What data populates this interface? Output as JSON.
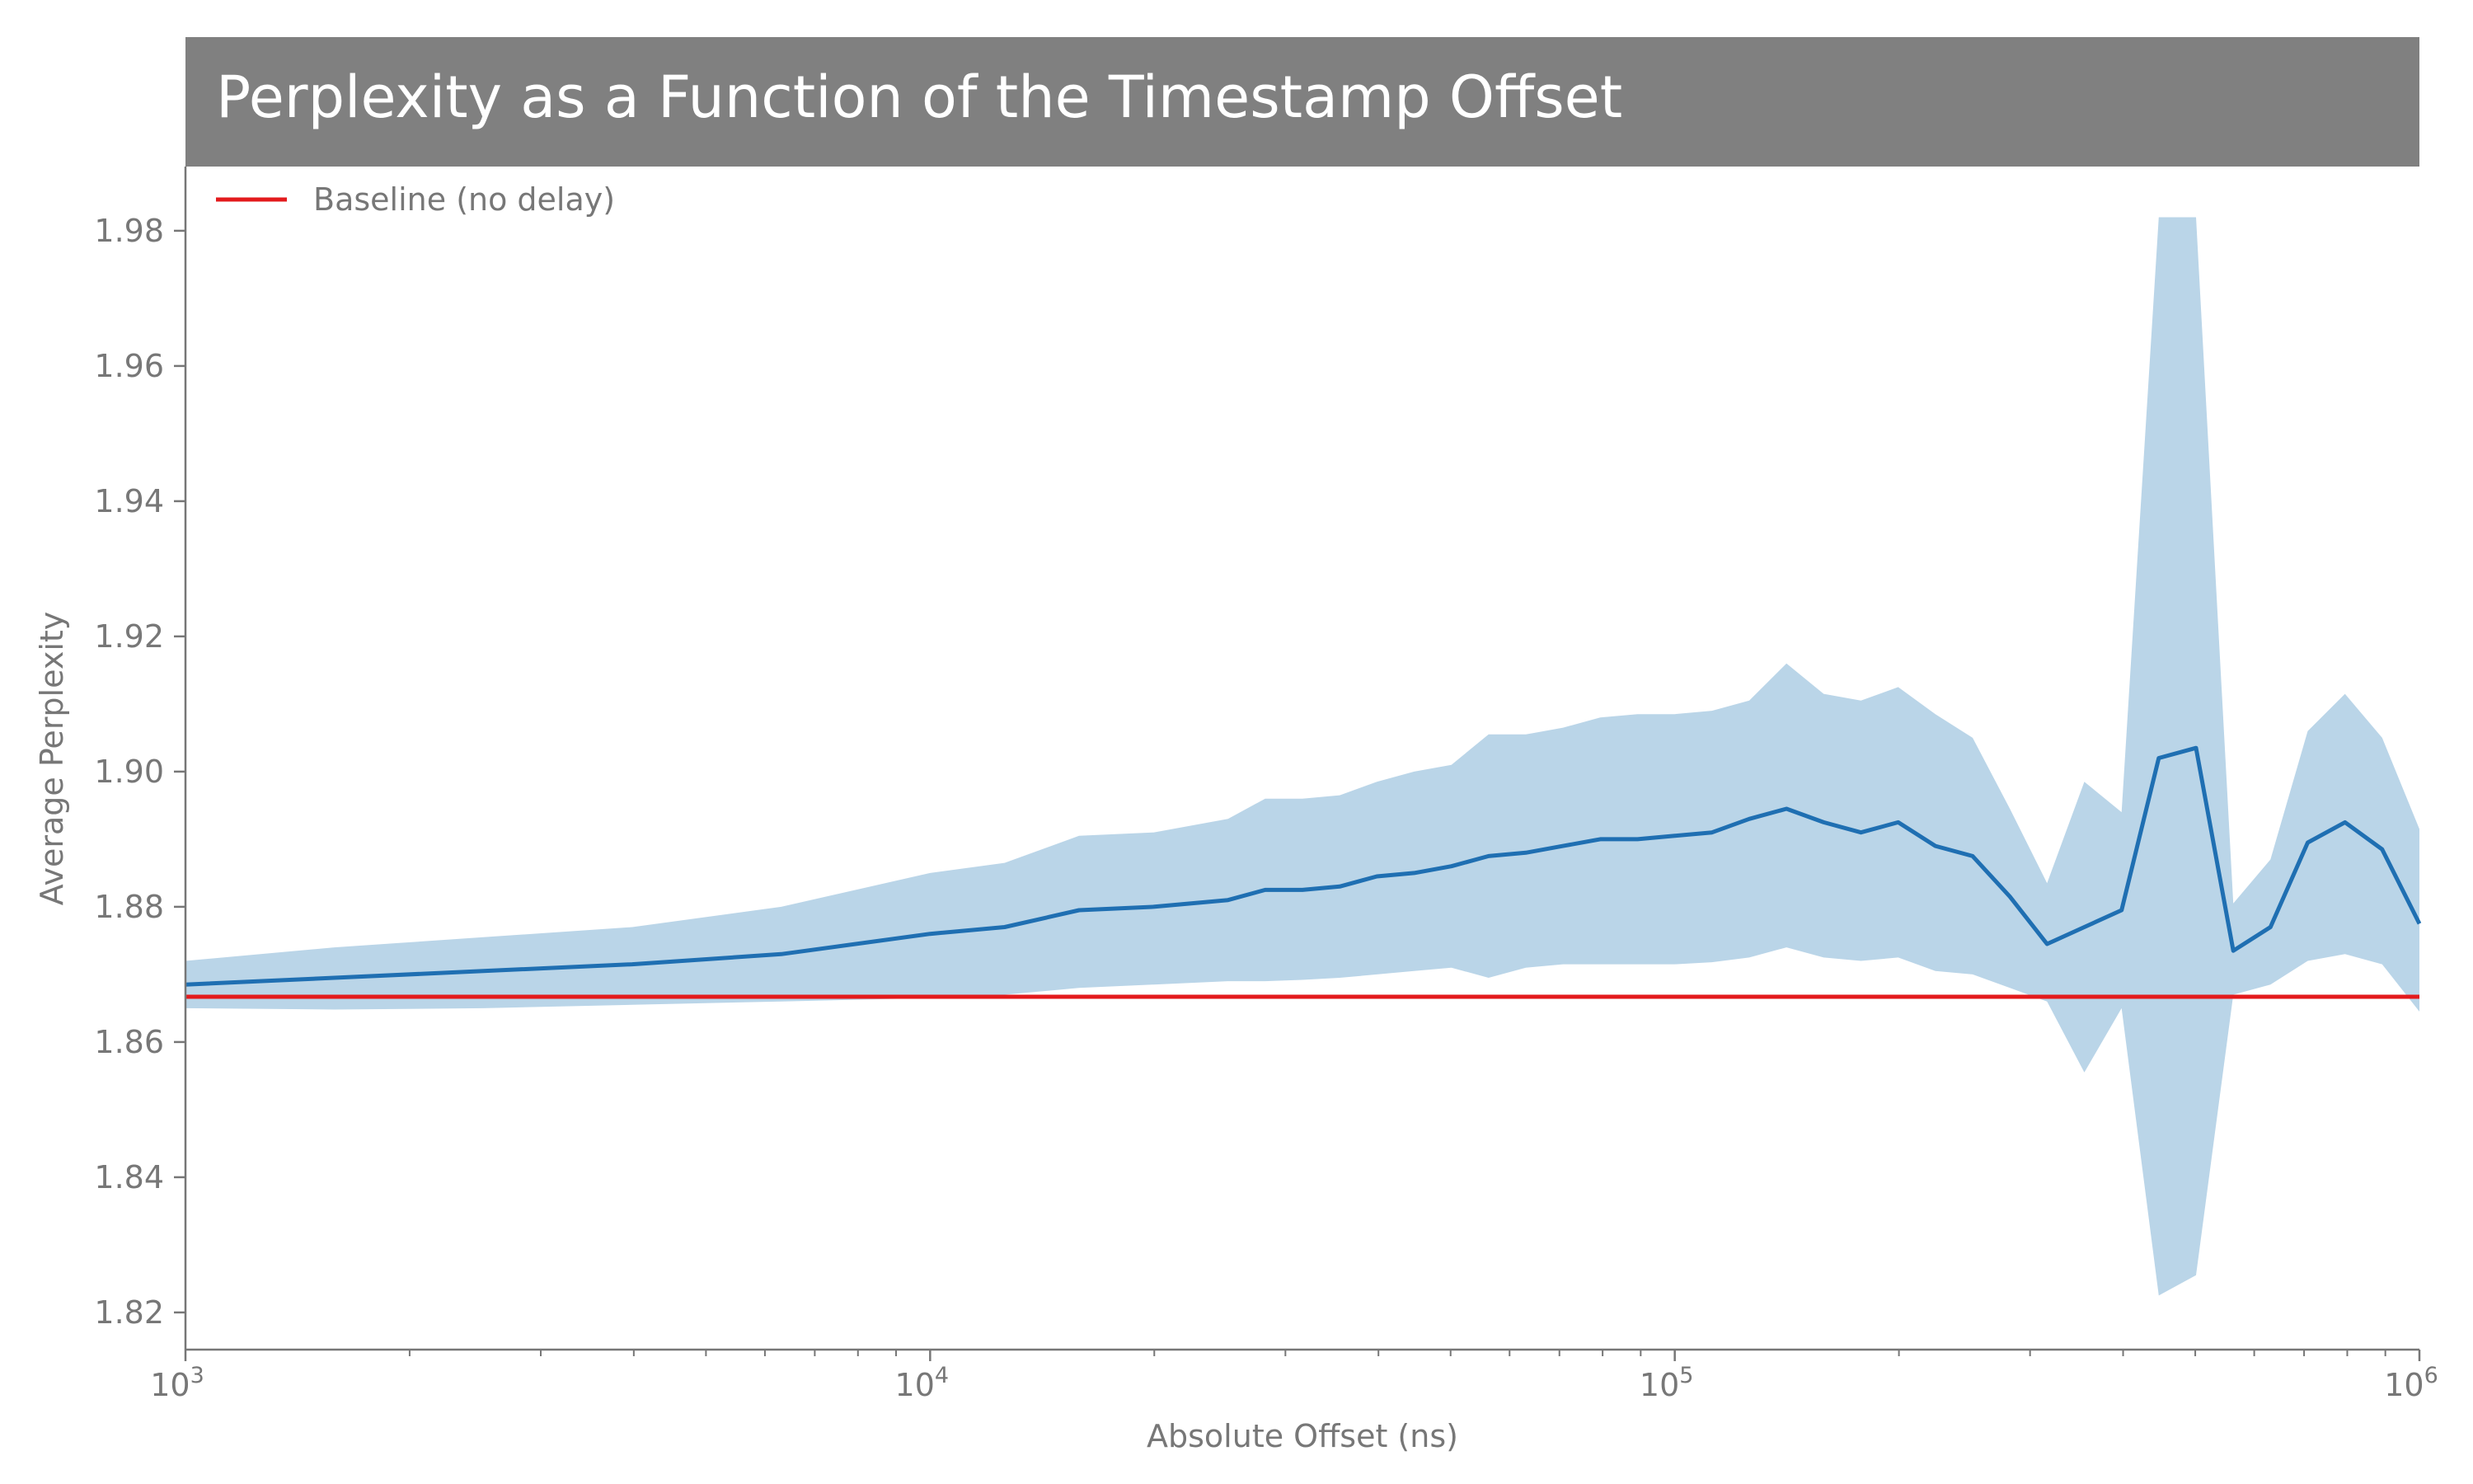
{
  "chart_data": {
    "type": "line",
    "title": "Perplexity as a Function of the Timestamp Offset",
    "xlabel": "Absolute Offset (ns)",
    "ylabel": "Average Perplexity",
    "x_scale": "log",
    "xlim": [
      1000,
      1000000
    ],
    "ylim": [
      1.8145,
      1.9895
    ],
    "x_ticks": [
      {
        "value": 1000,
        "base": "10",
        "exp": "3"
      },
      {
        "value": 10000,
        "base": "10",
        "exp": "4"
      },
      {
        "value": 100000,
        "base": "10",
        "exp": "5"
      },
      {
        "value": 1000000,
        "base": "10",
        "exp": "6"
      }
    ],
    "y_ticks": [
      1.82,
      1.84,
      1.86,
      1.88,
      1.9,
      1.92,
      1.94,
      1.96,
      1.98
    ],
    "y_tick_labels": [
      "1.82",
      "1.84",
      "1.86",
      "1.88",
      "1.90",
      "1.92",
      "1.94",
      "1.96",
      "1.98"
    ],
    "grid": false,
    "legend_position": "top-left",
    "baseline": {
      "name": "Baseline (no delay)",
      "value": 1.8667,
      "color": "#e31a1c"
    },
    "series": [
      {
        "color": "#1f6fb2",
        "band_color": "#bad5e8",
        "x": [
          1000,
          1585,
          2512,
          3981,
          6310,
          10000,
          12589,
          15849,
          19953,
          25119,
          28184,
          31623,
          35481,
          39811,
          44668,
          50119,
          56234,
          63096,
          70795,
          79433,
          89125,
          100000,
          112202,
          125893,
          141254,
          158489,
          177828,
          199526,
          223872,
          251189,
          281838,
          316228,
          354813,
          398107,
          446684,
          501187,
          562341,
          630957,
          707946,
          794328,
          891251,
          1000000
        ],
        "y": [
          1.8685,
          1.8695,
          1.8705,
          1.8715,
          1.873,
          1.876,
          1.877,
          1.8795,
          1.88,
          1.881,
          1.8825,
          1.8825,
          1.883,
          1.8845,
          1.885,
          1.886,
          1.8875,
          1.888,
          1.889,
          1.89,
          1.89,
          1.8905,
          1.891,
          1.893,
          1.8945,
          1.8925,
          1.891,
          1.8925,
          1.889,
          1.8875,
          1.8815,
          1.8745,
          1.877,
          1.8795,
          1.902,
          1.9035,
          1.8735,
          1.877,
          1.8895,
          1.8925,
          1.8885,
          1.8775
        ],
        "lower": [
          1.865,
          1.8648,
          1.865,
          1.8655,
          1.866,
          1.8665,
          1.867,
          1.868,
          1.8685,
          1.869,
          1.869,
          1.8692,
          1.8695,
          1.87,
          1.8705,
          1.871,
          1.8695,
          1.871,
          1.8715,
          1.8715,
          1.8715,
          1.8715,
          1.8718,
          1.8725,
          1.874,
          1.8725,
          1.872,
          1.8725,
          1.8705,
          1.87,
          1.868,
          1.866,
          1.8555,
          1.865,
          1.8225,
          1.8255,
          1.867,
          1.8685,
          1.872,
          1.873,
          1.8715,
          1.8645
        ],
        "upper": [
          1.872,
          1.874,
          1.8755,
          1.877,
          1.88,
          1.885,
          1.8865,
          1.8905,
          1.891,
          1.893,
          1.896,
          1.896,
          1.8965,
          1.8985,
          1.9,
          1.901,
          1.9055,
          1.9055,
          1.9065,
          1.908,
          1.9085,
          1.9085,
          1.909,
          1.9105,
          1.916,
          1.9115,
          1.9105,
          1.9125,
          1.9085,
          1.905,
          1.8945,
          1.8835,
          1.8985,
          1.894,
          1.982,
          1.982,
          1.8805,
          1.887,
          1.906,
          1.9115,
          1.905,
          1.8915
        ]
      }
    ]
  },
  "colors": {
    "title_bar": "#808080",
    "axis": "#777777",
    "line": "#1f6fb2",
    "band": "#bad5e8",
    "baseline": "#e31a1c"
  }
}
